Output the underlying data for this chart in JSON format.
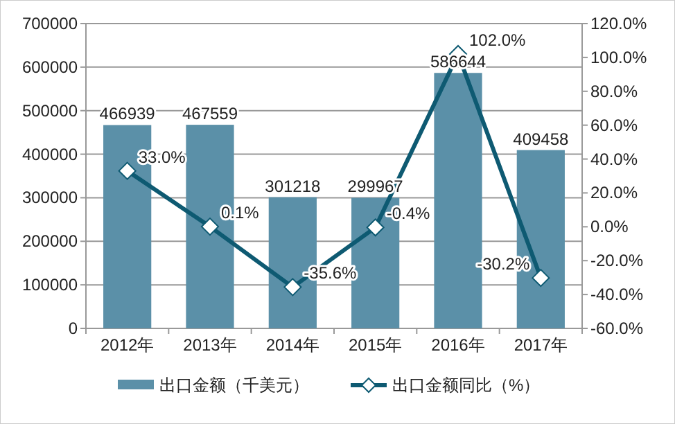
{
  "chart_data": {
    "type": "bar",
    "categories": [
      "2012年",
      "2013年",
      "2014年",
      "2015年",
      "2016年",
      "2017年"
    ],
    "series": [
      {
        "name": "出口金额（千美元）",
        "color": "#5b90a8",
        "values": [
          466939,
          467559,
          301218,
          299967,
          586644,
          409458
        ],
        "value_labels": [
          "466939",
          "467559",
          "301218",
          "299967",
          "586644",
          "409458"
        ]
      },
      {
        "name": "出口金额同比（%）",
        "type": "line",
        "axis": "y2",
        "color": "#0e5a72",
        "marker": "diamond",
        "values": [
          33.0,
          0.1,
          -35.6,
          -0.4,
          102.0,
          -30.2
        ],
        "value_labels": [
          "33.0%",
          "0.1%",
          "-35.6%",
          "-0.4%",
          "102.0%",
          "-30.2%"
        ]
      }
    ],
    "ylim": [
      0,
      700000
    ],
    "yticks": [
      0,
      100000,
      200000,
      300000,
      400000,
      500000,
      600000,
      700000
    ],
    "y2lim": [
      -60,
      120
    ],
    "y2ticks": [
      {
        "value": -60,
        "label": "-60.0%"
      },
      {
        "value": -40,
        "label": "-40.0%"
      },
      {
        "value": -20,
        "label": "-20.0%"
      },
      {
        "value": 0,
        "label": "0.0%"
      },
      {
        "value": 20,
        "label": "20.0%"
      },
      {
        "value": 40,
        "label": "40.0%"
      },
      {
        "value": 60,
        "label": "60.0%"
      },
      {
        "value": 80,
        "label": "80.0%"
      },
      {
        "value": 100,
        "label": "100.0%"
      },
      {
        "value": 120,
        "label": "120.0%"
      }
    ],
    "grid": "y",
    "legend": "bottom"
  }
}
